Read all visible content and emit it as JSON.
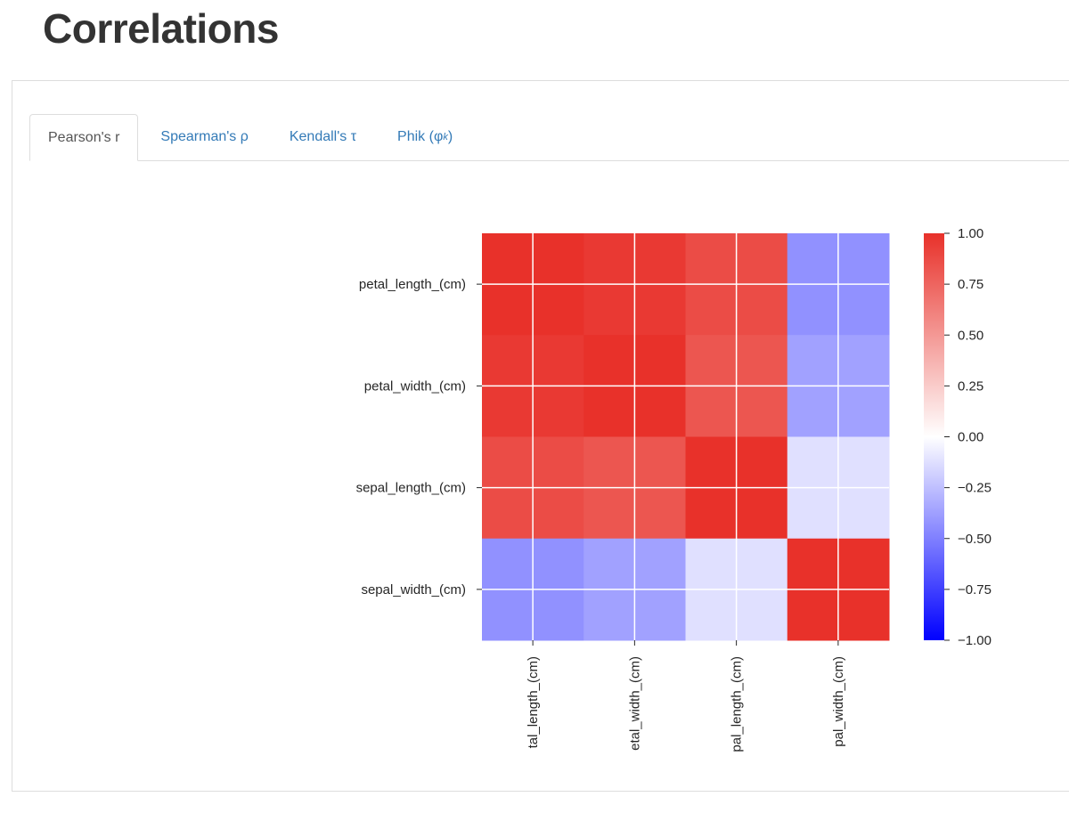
{
  "page": {
    "title": "Correlations"
  },
  "tabs": [
    {
      "label": "Pearson's r",
      "active": true
    },
    {
      "label": "Spearman's ρ",
      "active": false
    },
    {
      "label": "Kendall's τ",
      "active": false
    },
    {
      "label": "Phik (φ",
      "sub": "k",
      "suffix": ")",
      "active": false
    }
  ],
  "colors": {
    "tab_link": "#337ab7",
    "tab_active_text": "#555555",
    "cmap_negative": "#0000ff",
    "cmap_zero": "#ffffff",
    "cmap_positive": "#e8312a"
  },
  "chart_data": {
    "type": "heatmap",
    "title": "",
    "row_labels": [
      "petal_length_(cm)",
      "petal_width_(cm)",
      "sepal_length_(cm)",
      "sepal_width_(cm)"
    ],
    "col_labels": [
      "tal_length_(cm)",
      "etal_width_(cm)",
      "pal_length_(cm)",
      "pal_width_(cm)"
    ],
    "values": [
      [
        1.0,
        0.96,
        0.87,
        -0.43
      ],
      [
        0.96,
        1.0,
        0.82,
        -0.37
      ],
      [
        0.87,
        0.82,
        1.0,
        -0.12
      ],
      [
        -0.43,
        -0.37,
        -0.12,
        1.0
      ]
    ],
    "colorbar": {
      "min": -1.0,
      "max": 1.0,
      "ticks": [
        "1.00",
        "0.75",
        "0.50",
        "0.25",
        "0.00",
        "−0.25",
        "−0.50",
        "−0.75",
        "−1.00"
      ],
      "tick_values": [
        1.0,
        0.75,
        0.5,
        0.25,
        0.0,
        -0.25,
        -0.5,
        -0.75,
        -1.0
      ]
    },
    "grid": true
  }
}
